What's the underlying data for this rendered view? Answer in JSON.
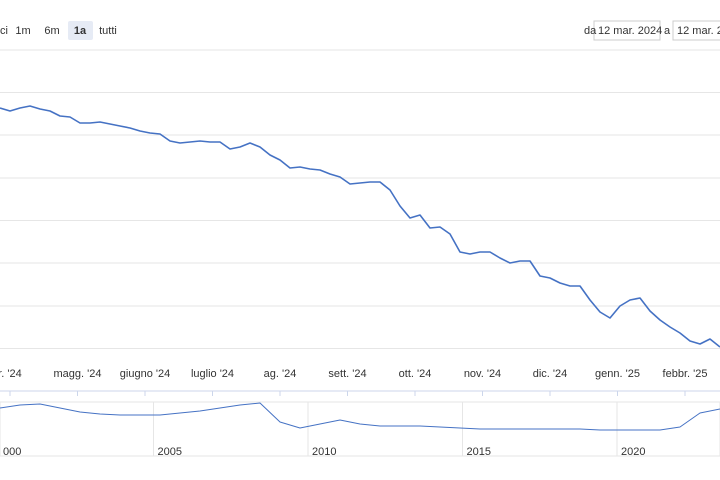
{
  "toolbar": {
    "zoom_label": "ci",
    "buttons": [
      "1m",
      "6m",
      "1a",
      "tutti"
    ],
    "selected": 2,
    "from_label": "da",
    "from_value": "12 mar. 2024",
    "to_label": "a",
    "to_value": "12 mar. 2"
  },
  "chart_data": {
    "type": "line",
    "color": "#4572c4",
    "x_labels": [
      "r. '24",
      "magg. '24",
      "giugno '24",
      "luglio '24",
      "ag. '24",
      "sett. '24",
      "ott. '24",
      "nov. '24",
      "dic. '24",
      "genn. '25",
      "febbr. '25"
    ],
    "values": [
      283,
      280,
      283,
      285,
      282,
      280,
      275,
      274,
      268,
      268,
      269,
      267,
      265,
      263,
      260,
      258,
      257,
      250,
      248,
      249,
      250,
      249,
      249,
      242,
      244,
      248,
      244,
      236,
      231,
      223,
      224,
      222,
      221,
      217,
      214,
      207,
      208,
      209,
      209,
      201,
      185,
      173,
      176,
      163,
      164,
      157,
      139,
      137,
      139,
      139,
      133,
      128,
      130,
      130,
      115,
      113,
      108,
      105,
      105,
      91,
      79,
      73,
      85,
      91,
      93,
      80,
      71,
      64,
      58,
      50,
      47,
      52,
      44
    ],
    "ylim": [
      0,
      341
    ],
    "navigator": {
      "labels": [
        "000",
        "2005",
        "2010",
        "2015",
        "2020"
      ],
      "values": [
        48,
        51,
        52,
        48,
        44,
        42,
        41,
        41,
        41,
        43,
        45,
        48,
        51,
        53,
        34,
        28,
        32,
        36,
        32,
        30,
        30,
        30,
        29,
        28,
        27,
        27,
        27,
        27,
        27,
        27,
        26,
        26,
        26,
        26,
        29,
        43,
        47
      ],
      "ylim": [
        0,
        56
      ]
    }
  }
}
